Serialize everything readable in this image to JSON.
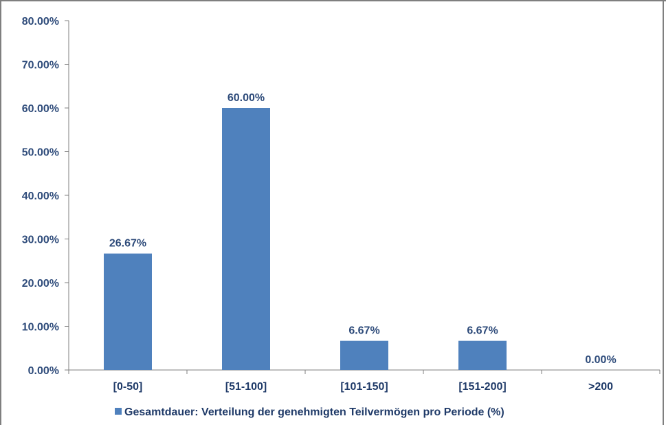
{
  "chart_data": {
    "type": "bar",
    "categories": [
      "[0-50]",
      "[51-100]",
      "[101-150]",
      "[151-200]",
      ">200"
    ],
    "series": [
      {
        "name": "Gesamtdauer: Verteilung der genehmigten Teilvermögen pro Periode (%)",
        "values": [
          26.67,
          60.0,
          6.67,
          6.67,
          0.0
        ],
        "data_labels": [
          "26.67%",
          "60.00%",
          "6.67%",
          "6.67%",
          "0.00%"
        ]
      }
    ],
    "y_ticks": [
      "0.00%",
      "10.00%",
      "20.00%",
      "30.00%",
      "40.00%",
      "50.00%",
      "60.00%",
      "70.00%",
      "80.00%"
    ],
    "ylim": [
      0,
      80
    ],
    "grid": false,
    "legend_position": "bottom",
    "colors": {
      "bar": "#4f81bd",
      "axis": "#7f7f7f",
      "text": "#2e4b7a"
    }
  }
}
